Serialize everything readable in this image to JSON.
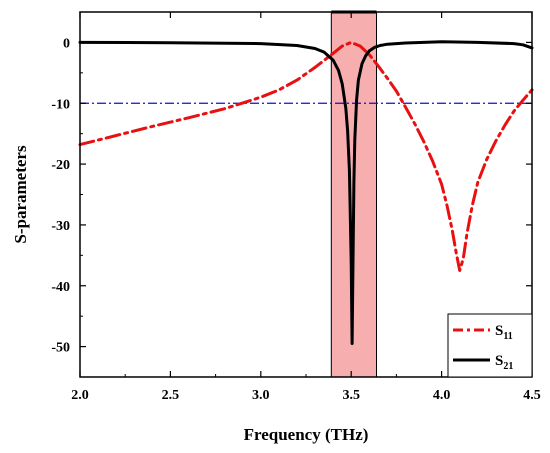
{
  "chart_data": {
    "type": "line",
    "xlabel": "Frequency (THz)",
    "ylabel": "S-parameters",
    "xlim": [
      2.0,
      4.5
    ],
    "ylim": [
      -55,
      5
    ],
    "xticks": [
      "2.0",
      "2.5",
      "3.0",
      "3.5",
      "4.0",
      "4.5"
    ],
    "yticks": [
      "0",
      "-10",
      "-20",
      "-30",
      "-40",
      "-50"
    ],
    "reference_line": {
      "y": -10,
      "style": "dash-dot",
      "color": "#1010cc"
    },
    "highlight_band": {
      "x": [
        3.39,
        3.64
      ],
      "color": "#f4a0a0"
    },
    "legend_position": "bottom-right",
    "series": [
      {
        "name": "S",
        "name_sub": "11",
        "style": "dash-dot",
        "color": "#e81010",
        "x": [
          2.0,
          2.2,
          2.4,
          2.6,
          2.8,
          3.0,
          3.1,
          3.2,
          3.3,
          3.4,
          3.45,
          3.5,
          3.55,
          3.6,
          3.65,
          3.7,
          3.75,
          3.8,
          3.85,
          3.9,
          3.95,
          4.0,
          4.03,
          4.06,
          4.08,
          4.1,
          4.12,
          4.14,
          4.17,
          4.2,
          4.25,
          4.3,
          4.35,
          4.4,
          4.45,
          4.5
        ],
        "y": [
          -16.8,
          -15.3,
          -13.8,
          -12.4,
          -10.9,
          -9.0,
          -7.8,
          -6.2,
          -4.1,
          -1.8,
          -0.6,
          0.0,
          -0.6,
          -2.0,
          -3.9,
          -5.9,
          -8.0,
          -10.6,
          -13.3,
          -16.2,
          -19.5,
          -23.3,
          -26.8,
          -31.0,
          -34.5,
          -37.5,
          -35.5,
          -31.5,
          -26.8,
          -23.0,
          -19.2,
          -16.2,
          -13.6,
          -11.3,
          -9.5,
          -7.8
        ]
      },
      {
        "name": "S",
        "name_sub": "21",
        "style": "solid",
        "color": "#000000",
        "x": [
          2.0,
          2.5,
          3.0,
          3.2,
          3.3,
          3.35,
          3.4,
          3.43,
          3.45,
          3.47,
          3.48,
          3.49,
          3.5,
          3.505,
          3.51,
          3.515,
          3.52,
          3.53,
          3.54,
          3.56,
          3.58,
          3.6,
          3.63,
          3.66,
          3.7,
          3.8,
          3.9,
          4.0,
          4.2,
          4.4,
          4.45,
          4.5
        ],
        "y": [
          0.0,
          -0.05,
          -0.2,
          -0.5,
          -1.0,
          -1.6,
          -2.9,
          -4.6,
          -6.8,
          -10.8,
          -14.5,
          -21.0,
          -36.0,
          -49.5,
          -36.0,
          -23.0,
          -16.0,
          -9.4,
          -6.2,
          -3.5,
          -2.2,
          -1.4,
          -0.8,
          -0.5,
          -0.3,
          -0.1,
          0.0,
          0.1,
          0.0,
          -0.2,
          -0.4,
          -0.9
        ]
      }
    ]
  }
}
